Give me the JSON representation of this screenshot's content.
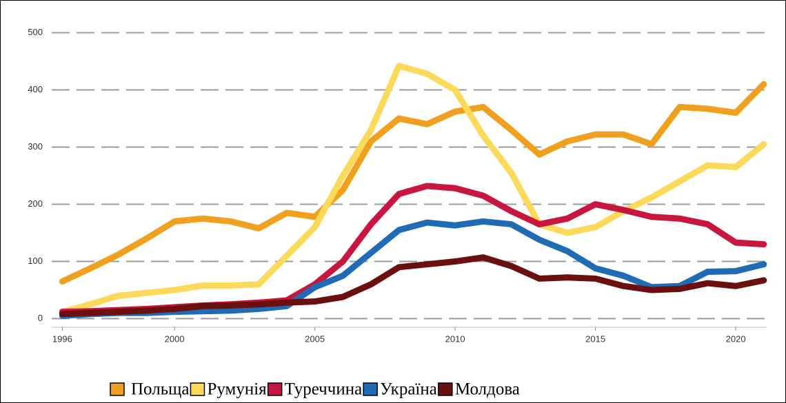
{
  "chart_data": {
    "type": "line",
    "x": [
      1996,
      1997,
      1998,
      1999,
      2000,
      2001,
      2002,
      2003,
      2004,
      2005,
      2006,
      2007,
      2008,
      2009,
      2010,
      2011,
      2012,
      2013,
      2014,
      2015,
      2016,
      2017,
      2018,
      2019,
      2020,
      2021
    ],
    "series": [
      {
        "name": "Польща",
        "color": "#f0a01e",
        "values": [
          65,
          88,
          112,
          140,
          170,
          175,
          170,
          158,
          185,
          178,
          225,
          310,
          350,
          340,
          362,
          370,
          330,
          287,
          310,
          322,
          322,
          305,
          370,
          367,
          360,
          410
        ]
      },
      {
        "name": "Румунія",
        "color": "#fdd95a",
        "values": [
          12,
          25,
          40,
          45,
          50,
          58,
          58,
          60,
          110,
          160,
          250,
          330,
          442,
          428,
          400,
          320,
          255,
          165,
          150,
          160,
          188,
          212,
          240,
          268,
          265,
          305
        ]
      },
      {
        "name": "Туреччина",
        "color": "#c8163e",
        "values": [
          12,
          13,
          15,
          17,
          20,
          23,
          25,
          28,
          32,
          60,
          100,
          165,
          218,
          232,
          228,
          215,
          188,
          165,
          175,
          200,
          190,
          178,
          175,
          165,
          133,
          130
        ]
      },
      {
        "name": "Україна",
        "color": "#1f6bb5",
        "values": [
          5,
          8,
          10,
          10,
          12,
          13,
          14,
          17,
          22,
          55,
          75,
          115,
          155,
          168,
          163,
          170,
          165,
          138,
          118,
          88,
          75,
          55,
          57,
          82,
          83,
          95
        ]
      },
      {
        "name": "Молдова",
        "color": "#6b0f0f",
        "values": [
          8,
          10,
          12,
          14,
          17,
          22,
          23,
          25,
          28,
          30,
          38,
          60,
          90,
          95,
          100,
          107,
          92,
          70,
          72,
          70,
          57,
          50,
          52,
          62,
          57,
          67
        ]
      }
    ],
    "xlim": [
      1995.5,
      2021.3
    ],
    "xticks": [
      1996,
      2000,
      2005,
      2010,
      2015,
      2020
    ],
    "ylim": [
      -15,
      515
    ],
    "yticks": [
      0,
      100,
      200,
      300,
      400,
      500
    ],
    "grid": true
  }
}
